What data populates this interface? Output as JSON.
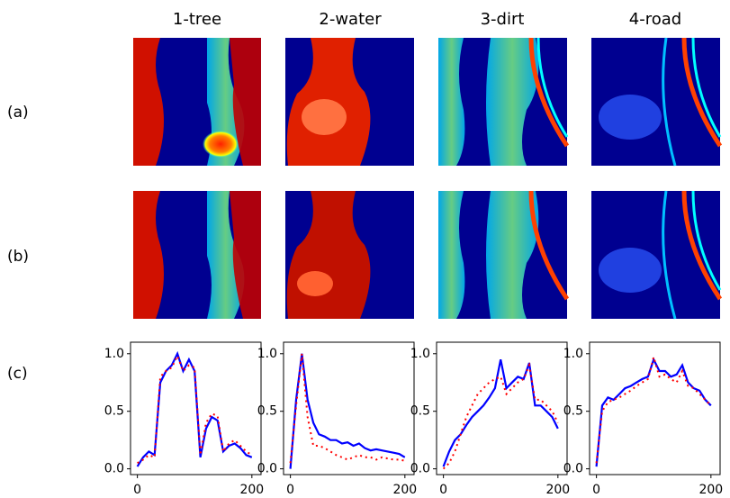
{
  "column_titles": [
    "1-tree",
    "2-water",
    "3-dirt",
    "4-road"
  ],
  "row_labels": [
    "(a)",
    "(b)",
    "(c)"
  ],
  "chart_data": [
    {
      "type": "line",
      "x": [
        0,
        10,
        20,
        30,
        40,
        50,
        60,
        70,
        80,
        90,
        100,
        110,
        120,
        130,
        140,
        150,
        160,
        170,
        180,
        190,
        200
      ],
      "series": [
        {
          "color": "#0000ff",
          "style": "solid",
          "values": [
            0.02,
            0.1,
            0.15,
            0.12,
            0.75,
            0.85,
            0.9,
            1.0,
            0.85,
            0.95,
            0.85,
            0.1,
            0.35,
            0.45,
            0.42,
            0.15,
            0.2,
            0.22,
            0.18,
            0.12,
            0.1
          ]
        },
        {
          "color": "#ff0000",
          "style": "dotted",
          "values": [
            0.05,
            0.08,
            0.12,
            0.1,
            0.8,
            0.85,
            0.88,
            0.98,
            0.85,
            0.9,
            0.88,
            0.12,
            0.4,
            0.48,
            0.46,
            0.15,
            0.22,
            0.25,
            0.2,
            0.15,
            0.12
          ]
        }
      ],
      "xlim": [
        -12,
        216
      ],
      "xticks": [
        0,
        200
      ],
      "ylim": [
        -0.05,
        1.1
      ],
      "yticks": [
        {
          "value": 0,
          "label": "0.0"
        },
        0.5,
        {
          "value": 1,
          "label": "1.0"
        }
      ]
    },
    {
      "type": "line",
      "x": [
        0,
        10,
        20,
        30,
        40,
        50,
        60,
        70,
        80,
        90,
        100,
        110,
        120,
        130,
        140,
        150,
        160,
        170,
        180,
        190,
        200
      ],
      "series": [
        {
          "color": "#0000ff",
          "style": "solid",
          "values": [
            0.0,
            0.6,
            1.0,
            0.6,
            0.4,
            0.3,
            0.28,
            0.25,
            0.25,
            0.22,
            0.23,
            0.2,
            0.22,
            0.18,
            0.16,
            0.17,
            0.16,
            0.15,
            0.14,
            0.13,
            0.1
          ]
        },
        {
          "color": "#ff0000",
          "style": "dotted",
          "values": [
            0.05,
            0.55,
            1.0,
            0.45,
            0.2,
            0.2,
            0.18,
            0.15,
            0.12,
            0.1,
            0.08,
            0.1,
            0.12,
            0.1,
            0.1,
            0.08,
            0.1,
            0.09,
            0.08,
            0.08,
            0.07
          ]
        }
      ],
      "xlim": [
        -12,
        216
      ],
      "xticks": [
        0,
        200
      ],
      "ylim": [
        -0.05,
        1.1
      ],
      "yticks": [
        {
          "value": 0,
          "label": "0.0"
        },
        0.5,
        {
          "value": 1,
          "label": "1.0"
        }
      ]
    },
    {
      "type": "line",
      "x": [
        0,
        10,
        20,
        30,
        40,
        50,
        60,
        70,
        80,
        90,
        100,
        110,
        120,
        130,
        140,
        150,
        160,
        170,
        180,
        190,
        200
      ],
      "series": [
        {
          "color": "#0000ff",
          "style": "solid",
          "values": [
            0.02,
            0.15,
            0.25,
            0.3,
            0.38,
            0.45,
            0.5,
            0.55,
            0.62,
            0.7,
            0.95,
            0.7,
            0.75,
            0.8,
            0.78,
            0.92,
            0.55,
            0.55,
            0.5,
            0.45,
            0.35
          ]
        },
        {
          "color": "#ff0000",
          "style": "dotted",
          "values": [
            0.0,
            0.05,
            0.15,
            0.3,
            0.45,
            0.55,
            0.65,
            0.7,
            0.75,
            0.78,
            0.8,
            0.65,
            0.7,
            0.75,
            0.78,
            0.9,
            0.6,
            0.6,
            0.55,
            0.5,
            0.4
          ]
        }
      ],
      "xlim": [
        -12,
        216
      ],
      "xticks": [
        0,
        200
      ],
      "ylim": [
        -0.05,
        1.1
      ],
      "yticks": [
        {
          "value": 0,
          "label": "0.0"
        },
        0.5,
        {
          "value": 1,
          "label": "1.0"
        }
      ]
    },
    {
      "type": "line",
      "x": [
        0,
        10,
        20,
        30,
        40,
        50,
        60,
        70,
        80,
        90,
        100,
        110,
        120,
        130,
        140,
        150,
        160,
        170,
        180,
        190,
        200
      ],
      "series": [
        {
          "color": "#0000ff",
          "style": "solid",
          "values": [
            0.02,
            0.55,
            0.62,
            0.6,
            0.65,
            0.7,
            0.72,
            0.75,
            0.78,
            0.8,
            0.95,
            0.85,
            0.85,
            0.8,
            0.82,
            0.9,
            0.75,
            0.7,
            0.68,
            0.6,
            0.55
          ]
        },
        {
          "color": "#ff0000",
          "style": "dotted",
          "values": [
            0.05,
            0.5,
            0.58,
            0.6,
            0.62,
            0.65,
            0.68,
            0.72,
            0.75,
            0.78,
            0.97,
            0.8,
            0.82,
            0.78,
            0.75,
            0.85,
            0.72,
            0.7,
            0.65,
            0.6,
            0.55
          ]
        }
      ],
      "xlim": [
        -12,
        216
      ],
      "xticks": [
        0,
        200
      ],
      "ylim": [
        -0.05,
        1.1
      ],
      "yticks": [
        {
          "value": 0,
          "label": "0.0"
        },
        0.5,
        {
          "value": 1,
          "label": "1.0"
        }
      ]
    }
  ]
}
